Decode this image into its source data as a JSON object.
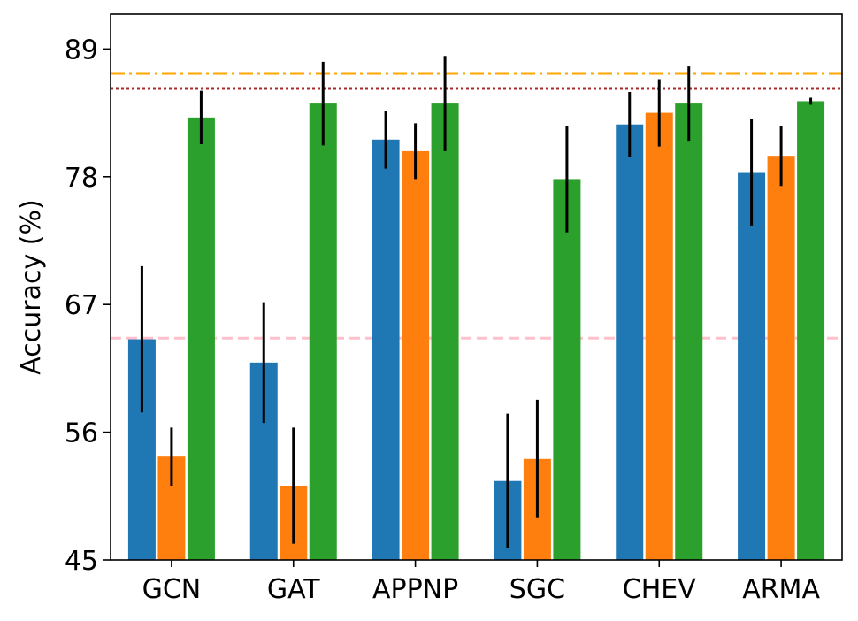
{
  "chart_data": {
    "type": "bar",
    "title": "",
    "xlabel": "",
    "ylabel": "Accuracy (%)",
    "ylim": [
      45,
      92
    ],
    "yticks": [
      45,
      56,
      67,
      78,
      89
    ],
    "grid": false,
    "legend": "none",
    "categories": [
      "GCN",
      "GAT",
      "APPNP",
      "SGC",
      "CHEV",
      "ARMA"
    ],
    "series": [
      {
        "color": "#1f77b4",
        "values": [
          64.0,
          62.0,
          81.2,
          51.8,
          82.5,
          78.4
        ],
        "errors": [
          6.3,
          5.2,
          2.5,
          5.8,
          2.8,
          4.6
        ]
      },
      {
        "color": "#ff7f0e",
        "values": [
          53.9,
          51.4,
          80.2,
          53.7,
          83.5,
          79.8
        ],
        "errors": [
          2.5,
          5.0,
          2.4,
          5.1,
          2.9,
          2.6
        ]
      },
      {
        "color": "#2ca02c",
        "values": [
          83.1,
          84.3,
          84.3,
          77.8,
          84.3,
          84.5
        ],
        "errors": [
          2.3,
          3.6,
          4.1,
          4.6,
          3.2,
          0.3
        ]
      }
    ],
    "reference_lines": [
      {
        "value": 86.9,
        "style": "dashdot",
        "color": "#ffa500"
      },
      {
        "value": 85.6,
        "style": "dotted",
        "color": "#a52a2a"
      },
      {
        "value": 64.1,
        "style": "dashed",
        "color": "#ffc0cb"
      }
    ]
  }
}
